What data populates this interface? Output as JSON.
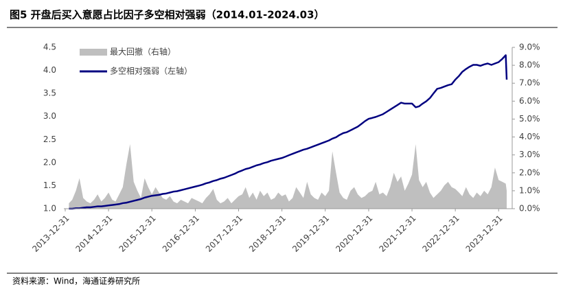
{
  "chart_data": {
    "type": "line",
    "title": "图5  开盘后买入意愿占比因子多空相对强弱（2014.01-2024.03）",
    "source": "资料来源：Wind，海通证券研究所",
    "x": [
      "2014-01-31",
      "2014-02-28",
      "2014-03-31",
      "2014-04-30",
      "2014-05-31",
      "2014-06-30",
      "2014-07-31",
      "2014-08-31",
      "2014-09-30",
      "2014-10-31",
      "2014-11-30",
      "2014-12-31",
      "2015-01-31",
      "2015-02-28",
      "2015-03-31",
      "2015-04-30",
      "2015-05-31",
      "2015-06-30",
      "2015-07-31",
      "2015-08-31",
      "2015-09-30",
      "2015-10-31",
      "2015-11-30",
      "2015-12-31",
      "2016-01-31",
      "2016-02-29",
      "2016-03-31",
      "2016-04-30",
      "2016-05-31",
      "2016-06-30",
      "2016-07-31",
      "2016-08-31",
      "2016-09-30",
      "2016-10-31",
      "2016-11-30",
      "2016-12-31",
      "2017-01-31",
      "2017-02-28",
      "2017-03-31",
      "2017-04-30",
      "2017-05-31",
      "2017-06-30",
      "2017-07-31",
      "2017-08-31",
      "2017-09-30",
      "2017-10-31",
      "2017-11-30",
      "2017-12-31",
      "2018-01-31",
      "2018-02-28",
      "2018-03-31",
      "2018-04-30",
      "2018-05-31",
      "2018-06-30",
      "2018-07-31",
      "2018-08-31",
      "2018-09-30",
      "2018-10-31",
      "2018-11-30",
      "2018-12-31",
      "2019-01-31",
      "2019-02-28",
      "2019-03-31",
      "2019-04-30",
      "2019-05-31",
      "2019-06-30",
      "2019-07-31",
      "2019-08-31",
      "2019-09-30",
      "2019-10-31",
      "2019-11-30",
      "2019-12-31",
      "2020-01-31",
      "2020-02-29",
      "2020-03-31",
      "2020-04-30",
      "2020-05-31",
      "2020-06-30",
      "2020-07-31",
      "2020-08-31",
      "2020-09-30",
      "2020-10-31",
      "2020-11-30",
      "2020-12-31",
      "2021-01-31",
      "2021-02-28",
      "2021-03-31",
      "2021-04-30",
      "2021-05-31",
      "2021-06-30",
      "2021-07-31",
      "2021-08-31",
      "2021-09-30",
      "2021-10-31",
      "2021-11-30",
      "2021-12-31",
      "2022-01-31",
      "2022-02-28",
      "2022-03-31",
      "2022-04-30",
      "2022-05-31",
      "2022-06-30",
      "2022-07-31",
      "2022-08-31",
      "2022-09-30",
      "2022-10-31",
      "2022-11-30",
      "2022-12-31",
      "2023-01-31",
      "2023-02-28",
      "2023-03-31",
      "2023-04-30",
      "2023-05-31",
      "2023-06-30",
      "2023-07-31",
      "2023-08-31",
      "2023-09-30",
      "2023-10-31",
      "2023-11-30",
      "2023-12-31",
      "2024-01-31",
      "2024-02-29",
      "2024-03-08"
    ],
    "series": [
      {
        "name": "最大回撤（右轴）",
        "type": "area",
        "axis": "y2",
        "color": "#bfbfbf",
        "values": [
          0.3,
          0.5,
          1.0,
          1.7,
          0.6,
          0.4,
          0.3,
          0.5,
          0.8,
          0.4,
          0.6,
          0.9,
          0.5,
          0.4,
          0.8,
          1.2,
          2.5,
          3.6,
          1.5,
          1.0,
          0.6,
          1.7,
          1.2,
          0.8,
          1.2,
          0.9,
          0.6,
          0.5,
          0.7,
          0.4,
          0.3,
          0.5,
          0.4,
          0.3,
          0.6,
          0.5,
          0.4,
          0.3,
          0.6,
          0.8,
          1.1,
          0.5,
          0.3,
          0.4,
          0.6,
          0.3,
          0.5,
          0.7,
          0.8,
          1.2,
          0.6,
          0.9,
          0.5,
          1.0,
          0.7,
          0.9,
          0.5,
          0.6,
          0.9,
          0.7,
          0.8,
          0.4,
          0.6,
          1.2,
          0.9,
          0.6,
          1.5,
          0.8,
          0.6,
          0.5,
          0.9,
          0.7,
          1.0,
          3.2,
          2.0,
          0.9,
          0.6,
          0.5,
          1.0,
          1.2,
          0.8,
          0.6,
          0.7,
          0.9,
          1.0,
          1.5,
          0.8,
          0.9,
          0.7,
          1.2,
          2.0,
          1.5,
          1.8,
          1.0,
          1.4,
          1.9,
          3.6,
          1.6,
          1.2,
          1.5,
          0.9,
          0.6,
          0.8,
          1.0,
          1.3,
          1.5,
          1.2,
          1.1,
          0.9,
          0.7,
          1.2,
          0.8,
          0.6,
          0.9,
          0.7,
          1.0,
          0.8,
          1.2,
          2.3,
          1.6,
          1.5,
          1.4,
          1.0
        ]
      },
      {
        "name": "多空相对强弱（左轴）",
        "type": "line",
        "color": "#000080",
        "values": [
          1.0,
          1.0,
          1.01,
          1.01,
          1.02,
          1.03,
          1.03,
          1.04,
          1.05,
          1.05,
          1.06,
          1.07,
          1.08,
          1.09,
          1.1,
          1.12,
          1.13,
          1.15,
          1.17,
          1.19,
          1.21,
          1.24,
          1.26,
          1.28,
          1.29,
          1.3,
          1.32,
          1.33,
          1.35,
          1.37,
          1.38,
          1.4,
          1.42,
          1.44,
          1.46,
          1.48,
          1.5,
          1.52,
          1.55,
          1.57,
          1.6,
          1.62,
          1.65,
          1.67,
          1.7,
          1.73,
          1.76,
          1.8,
          1.83,
          1.86,
          1.88,
          1.91,
          1.94,
          1.96,
          1.99,
          2.01,
          2.04,
          2.06,
          2.08,
          2.1,
          2.13,
          2.16,
          2.19,
          2.22,
          2.25,
          2.28,
          2.3,
          2.33,
          2.36,
          2.39,
          2.42,
          2.45,
          2.48,
          2.52,
          2.55,
          2.6,
          2.64,
          2.66,
          2.7,
          2.74,
          2.78,
          2.84,
          2.9,
          2.95,
          2.97,
          2.99,
          3.02,
          3.05,
          3.1,
          3.15,
          3.2,
          3.25,
          3.3,
          3.28,
          3.28,
          3.28,
          3.2,
          3.22,
          3.28,
          3.33,
          3.4,
          3.5,
          3.6,
          3.62,
          3.65,
          3.68,
          3.7,
          3.8,
          3.88,
          3.97,
          4.03,
          4.08,
          4.12,
          4.12,
          4.1,
          4.13,
          4.15,
          4.12,
          4.15,
          4.18,
          4.25,
          4.33,
          3.8
        ]
      }
    ],
    "xlim": [
      "2013-12-31",
      "2024-03-08"
    ],
    "xticks": [
      "2013-12-31",
      "2014-12-31",
      "2015-12-31",
      "2016-12-31",
      "2017-12-31",
      "2018-12-31",
      "2019-12-31",
      "2020-12-31",
      "2021-12-31",
      "2022-12-31",
      "2023-12-31"
    ],
    "ylim": [
      1.0,
      4.5
    ],
    "yticks": [
      {
        "value": 1,
        "label": "1.0"
      },
      1.5,
      {
        "value": 2,
        "label": "2.0"
      },
      2.5,
      {
        "value": 3,
        "label": "3.0"
      },
      3.5,
      {
        "value": 4,
        "label": "4.0"
      },
      4.5
    ],
    "y2lim": [
      0,
      9
    ],
    "y2ticks": [
      {
        "value": 0,
        "label": "0.0%"
      },
      {
        "value": 1,
        "label": "1.0%"
      },
      {
        "value": 2,
        "label": "2.0%"
      },
      {
        "value": 3,
        "label": "3.0%"
      },
      {
        "value": 4,
        "label": "4.0%"
      },
      {
        "value": 5,
        "label": "5.0%"
      },
      {
        "value": 6,
        "label": "6.0%"
      },
      {
        "value": 7,
        "label": "7.0%"
      },
      {
        "value": 8,
        "label": "8.0%"
      },
      {
        "value": 9,
        "label": "9.0%"
      }
    ],
    "grid": false,
    "legend": "top-left"
  }
}
